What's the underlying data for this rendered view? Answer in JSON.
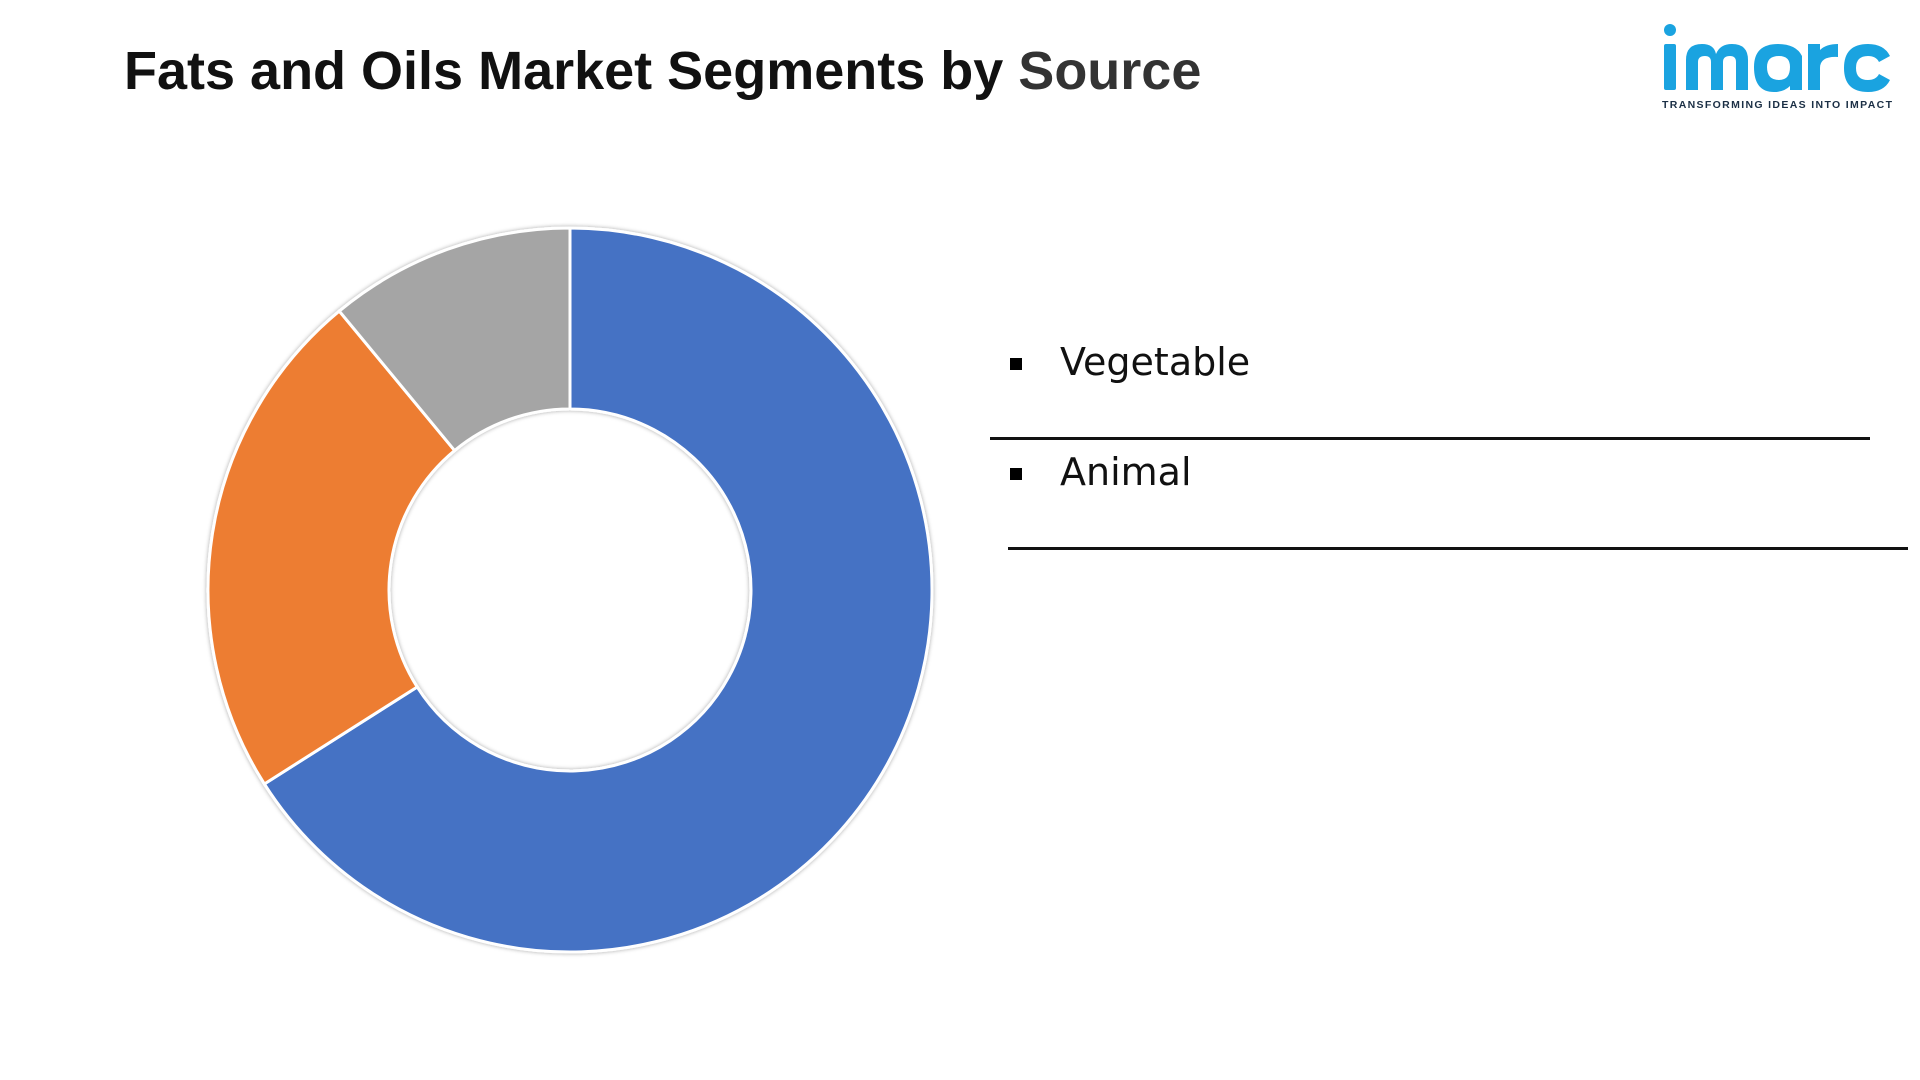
{
  "header": {
    "title_main": "Fats and Oils Market Segments by",
    "title_accent": "Source"
  },
  "logo": {
    "wordmark": "imarc",
    "tagline": "TRANSFORMING IDEAS INTO IMPACT",
    "color": "#1aa3e0"
  },
  "chart_data": {
    "type": "pie",
    "variant": "donut",
    "categories": [
      "Vegetable",
      "Animal"
    ],
    "segments": [
      {
        "category": "Vegetable",
        "value": 66,
        "color": "#4472c4"
      },
      {
        "category": "",
        "value": 23,
        "color": "#ed7d31"
      },
      {
        "category": "",
        "value": 11,
        "color": "#a5a5a5"
      }
    ],
    "legend_position": "right",
    "slice_border_color": "#ffffff"
  }
}
